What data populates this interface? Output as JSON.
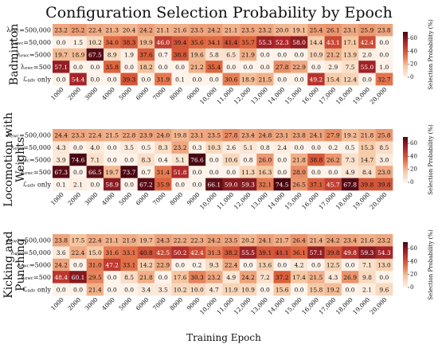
{
  "title": "Configuration Selection Probability by Epoch",
  "xlabel": "Training Epoch",
  "colorbar": {
    "label": "Selection Probability (%)",
    "ticks": [
      "0",
      "20",
      "40",
      "60"
    ],
    "range": [
      0,
      70
    ],
    "colors": [
      "#fdf3ea",
      "#f5c6a0",
      "#e0673f",
      "#b0272a",
      "#4a0612"
    ]
  },
  "chart_data": [
    {
      "type": "heatmap",
      "title": "Badminton",
      "rows": [
        "λewc=500,000",
        "λewc=50,000",
        "λewc=5000",
        "λewc=500",
        "ℒadv only"
      ],
      "columns": [
        "1000",
        "2000",
        "3000",
        "4000",
        "5000",
        "6000",
        "7000",
        "8000",
        "9000",
        "10,000",
        "11,000",
        "12,000",
        "13,000",
        "14,000",
        "15,000",
        "16,000",
        "17,000",
        "18,000",
        "19,000",
        "20,000"
      ],
      "values": [
        [
          23.2,
          25.2,
          22.4,
          21.3,
          20.4,
          24.2,
          21.1,
          21.6,
          23.5,
          24.2,
          21.1,
          23.5,
          23.2,
          20.0,
          19.1,
          25.4,
          26.1,
          23.1,
          25.9,
          23.8
        ],
        [
          0.0,
          1.5,
          10.2,
          34.0,
          38.3,
          19.9,
          46.0,
          39.4,
          35.6,
          34.1,
          41.4,
          35.7,
          55.3,
          52.3,
          58.0,
          14.4,
          43.1,
          17.1,
          42.4,
          0.0
        ],
        [
          19.7,
          18.9,
          67.5,
          8.9,
          1.9,
          37.6,
          0.7,
          38.8,
          19.6,
          5.8,
          6.5,
          21.9,
          0.0,
          0.0,
          0.0,
          10.9,
          21.2,
          13.9,
          2.0,
          0.0
        ],
        [
          57.1,
          0.0,
          0.0,
          35.8,
          0.0,
          18.2,
          0.0,
          0.0,
          21.2,
          35.4,
          0.0,
          0.0,
          0.0,
          27.8,
          22.9,
          0.0,
          2.9,
          7.5,
          55.0,
          1.0
        ],
        [
          0.0,
          54.4,
          0.0,
          0.0,
          39.3,
          0.0,
          31.9,
          0.1,
          0.0,
          0.0,
          30.6,
          18.9,
          21.5,
          0.0,
          0.0,
          49.2,
          15.4,
          12.4,
          0.0,
          32.7
        ]
      ]
    },
    {
      "type": "heatmap",
      "title": "Locomotion with Weights",
      "rows": [
        "λewc=500,000",
        "λewc=50,000",
        "λewc=5000",
        "λewc=500",
        "ℒadv only"
      ],
      "columns": [
        "1000",
        "2000",
        "3000",
        "4000",
        "5000",
        "6000",
        "7000",
        "8000",
        "9000",
        "10,000",
        "11,000",
        "12,000",
        "13,000",
        "14,000",
        "15,000",
        "16,000",
        "17,000",
        "18,000",
        "19,000",
        "20,000"
      ],
      "values": [
        [
          24.4,
          23.3,
          22.4,
          21.5,
          22.8,
          23.9,
          24.0,
          19.8,
          23.1,
          23.5,
          27.8,
          23.4,
          24.8,
          23.1,
          23.8,
          24.1,
          27.9,
          19.2,
          21.8,
          25.8
        ],
        [
          4.3,
          0.0,
          4.0,
          0.0,
          3.5,
          0.5,
          8.3,
          23.2,
          0.3,
          10.3,
          2.6,
          5.1,
          0.8,
          2.4,
          0.0,
          0.0,
          0.2,
          0.5,
          15.3,
          8.5
        ],
        [
          3.9,
          74.6,
          7.1,
          0.0,
          0.0,
          8.3,
          0.4,
          5.1,
          76.6,
          0.0,
          10.6,
          0.8,
          26.0,
          0.0,
          21.8,
          38.8,
          26.2,
          7.3,
          14.7,
          3.0
        ],
        [
          67.3,
          0.0,
          66.5,
          19.7,
          73.7,
          0.7,
          31.4,
          51.8,
          0.0,
          0.0,
          0.0,
          11.3,
          16.3,
          0.0,
          28.0,
          0.0,
          0.0,
          4.9,
          8.4,
          23.0
        ],
        [
          0.1,
          2.1,
          0.0,
          58.9,
          0.0,
          67.2,
          35.9,
          0.0,
          0.0,
          66.1,
          59.0,
          59.3,
          32.1,
          74.5,
          26.5,
          37.1,
          45.7,
          67.8,
          39.8,
          39.8
        ]
      ]
    },
    {
      "type": "heatmap",
      "title": "Kicking and Punching",
      "rows": [
        "λewc=500,000",
        "λewc=50,000",
        "λewc=5000",
        "λewc=500",
        "ℒadv only"
      ],
      "columns": [
        "1000",
        "2000",
        "3000",
        "4000",
        "5000",
        "6000",
        "7000",
        "8000",
        "9000",
        "10,000",
        "11,000",
        "12,000",
        "13,000",
        "14,000",
        "15,000",
        "16,000",
        "17,000",
        "18,000",
        "19,000",
        "20,000"
      ],
      "values": [
        [
          23.8,
          17.5,
          22.4,
          21.1,
          21.9,
          19.7,
          24.3,
          22.2,
          22.3,
          24.2,
          23.5,
          20.2,
          24.1,
          21.7,
          26.4,
          21.4,
          24.2,
          23.4,
          21.6,
          23.2
        ],
        [
          3.6,
          22.4,
          15.0,
          31.6,
          33.1,
          40.8,
          42.5,
          50.2,
          42.4,
          31.3,
          38.2,
          55.5,
          39.1,
          41.1,
          36.1,
          57.1,
          39.8,
          49.8,
          59.3,
          54.3
        ],
        [
          24.2,
          0.0,
          31.0,
          47.2,
          33.1,
          14.2,
          22.9,
          0.0,
          0.2,
          9.3,
          22.4,
          0.0,
          13.6,
          0.0,
          4.2,
          0.0,
          12.5,
          0.0,
          7.1,
          13.0
        ],
        [
          48.4,
          60.1,
          29.5,
          0.0,
          8.5,
          21.8,
          0.0,
          17.6,
          30.3,
          23.2,
          4.9,
          24.2,
          7.2,
          37.2,
          17.4,
          21.5,
          4.3,
          26.9,
          9.8,
          0.0
        ],
        [
          0.0,
          0.0,
          21.4,
          0.0,
          0.0,
          3.4,
          3.5,
          10.2,
          10.0,
          4.7,
          11.9,
          10.9,
          0.0,
          15.6,
          0.0,
          15.8,
          19.2,
          0.0,
          2.1,
          9.6
        ]
      ]
    }
  ]
}
